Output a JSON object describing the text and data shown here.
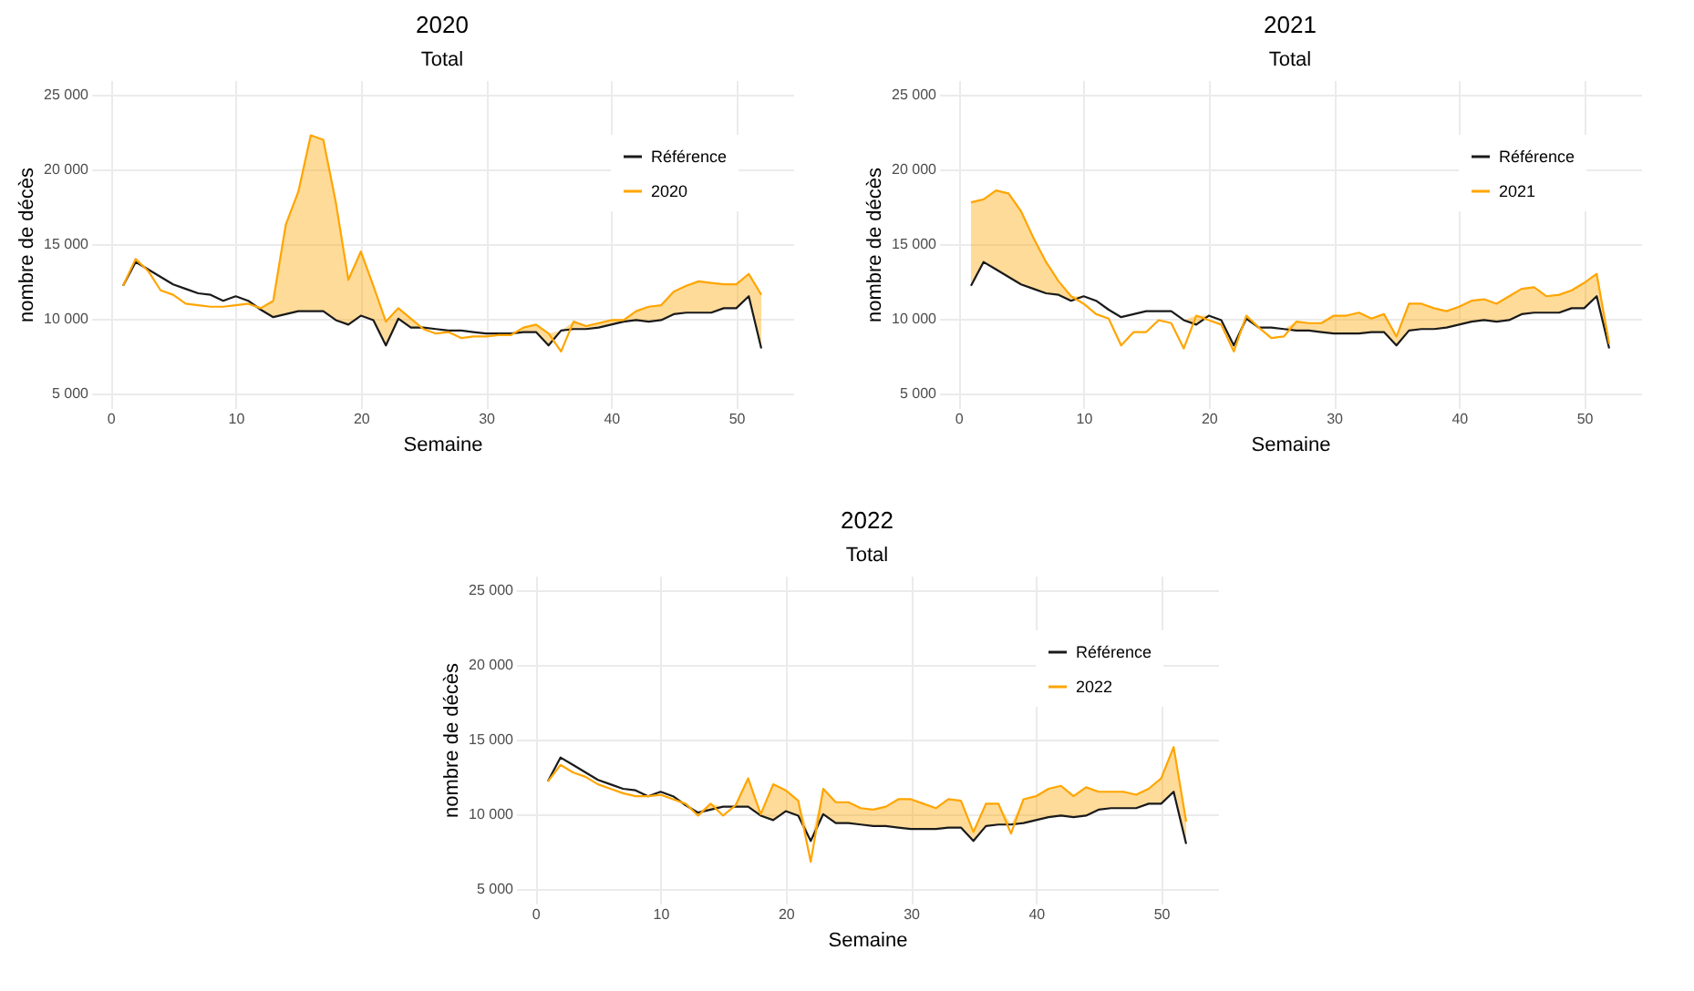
{
  "chart_data": [
    {
      "type": "line",
      "title": "2020",
      "subtitle": "Total",
      "xlabel": "Semaine",
      "ylabel": "nombre de décès",
      "x": [
        1,
        2,
        3,
        4,
        5,
        6,
        7,
        8,
        9,
        10,
        11,
        12,
        13,
        14,
        15,
        16,
        17,
        18,
        19,
        20,
        21,
        22,
        23,
        24,
        25,
        26,
        27,
        28,
        29,
        30,
        31,
        32,
        33,
        34,
        35,
        36,
        37,
        38,
        39,
        40,
        41,
        42,
        43,
        44,
        45,
        46,
        47,
        48,
        49,
        50,
        51,
        52
      ],
      "xlim": [
        -1.55,
        54.55
      ],
      "xticks": [
        0,
        10,
        20,
        30,
        40,
        50
      ],
      "ylim": [
        4000,
        26000
      ],
      "yticks": [
        {
          "value": 5000,
          "label": "5 000"
        },
        {
          "value": 10000,
          "label": "10 000"
        },
        {
          "value": 15000,
          "label": "15 000"
        },
        {
          "value": 20000,
          "label": "20 000"
        },
        {
          "value": 25000,
          "label": "25 000"
        }
      ],
      "grid": true,
      "legend": "top right",
      "series": [
        {
          "name": "Référence",
          "color": "#1a1a1a",
          "values": [
            12200,
            13800,
            13300,
            12800,
            12300,
            12000,
            11700,
            11600,
            11200,
            11500,
            11200,
            10600,
            10100,
            10300,
            10500,
            10500,
            10500,
            9900,
            9600,
            10200,
            9900,
            8200,
            10000,
            9400,
            9400,
            9300,
            9200,
            9200,
            9100,
            9000,
            9000,
            9000,
            9100,
            9100,
            8200,
            9200,
            9300,
            9300,
            9400,
            9600,
            9800,
            9900,
            9800,
            9900,
            10300,
            10400,
            10400,
            10400,
            10700,
            10700,
            11500,
            8000
          ]
        },
        {
          "name": "2020",
          "color": "#ffa500",
          "values": [
            12200,
            14000,
            13200,
            11900,
            11600,
            11000,
            10900,
            10800,
            10800,
            10900,
            11000,
            10700,
            11200,
            16300,
            18500,
            22300,
            22000,
            17800,
            12600,
            14500,
            12200,
            9800,
            10700,
            10000,
            9300,
            9000,
            9100,
            8700,
            8800,
            8800,
            8900,
            8900,
            9400,
            9600,
            9000,
            7800,
            9800,
            9500,
            9700,
            9900,
            9900,
            10500,
            10800,
            10900,
            11800,
            12200,
            12500,
            12400,
            12300,
            12300,
            13000,
            11600
          ],
          "lower": [
            12200,
            13800,
            13300,
            12800,
            12300,
            12000,
            11700,
            11600,
            11200,
            11500,
            11200,
            10600,
            10100,
            10300,
            10500,
            10500,
            10500,
            9900,
            9600,
            10200,
            9900,
            8200,
            10000,
            9400,
            9400,
            9300,
            9200,
            9200,
            9100,
            9000,
            9000,
            9000,
            9100,
            9100,
            8200,
            9200,
            9300,
            9300,
            9400,
            9600,
            9800,
            9900,
            9800,
            9900,
            10300,
            10400,
            10400,
            10400,
            10700,
            10700,
            11500,
            8000
          ],
          "upper": [
            12200,
            14000,
            13300,
            12800,
            12300,
            12000,
            11700,
            11600,
            11200,
            11500,
            11200,
            10700,
            11200,
            16300,
            18500,
            22300,
            22000,
            17800,
            12600,
            14500,
            12200,
            9800,
            10700,
            10000,
            9400,
            9300,
            9200,
            9200,
            9100,
            9000,
            9000,
            9000,
            9400,
            9600,
            9000,
            9200,
            9800,
            9500,
            9700,
            9900,
            9900,
            10500,
            10800,
            10900,
            11800,
            12200,
            12500,
            12400,
            12300,
            12300,
            13000,
            11600
          ]
        }
      ]
    },
    {
      "type": "line",
      "title": "2021",
      "subtitle": "Total",
      "xlabel": "Semaine",
      "ylabel": "nombre de décès",
      "x": [
        1,
        2,
        3,
        4,
        5,
        6,
        7,
        8,
        9,
        10,
        11,
        12,
        13,
        14,
        15,
        16,
        17,
        18,
        19,
        20,
        21,
        22,
        23,
        24,
        25,
        26,
        27,
        28,
        29,
        30,
        31,
        32,
        33,
        34,
        35,
        36,
        37,
        38,
        39,
        40,
        41,
        42,
        43,
        44,
        45,
        46,
        47,
        48,
        49,
        50,
        51,
        52
      ],
      "xlim": [
        -1.55,
        54.55
      ],
      "xticks": [
        0,
        10,
        20,
        30,
        40,
        50
      ],
      "ylim": [
        4000,
        26000
      ],
      "yticks": [
        {
          "value": 5000,
          "label": "5 000"
        },
        {
          "value": 10000,
          "label": "10 000"
        },
        {
          "value": 15000,
          "label": "15 000"
        },
        {
          "value": 20000,
          "label": "20 000"
        },
        {
          "value": 25000,
          "label": "25 000"
        }
      ],
      "grid": true,
      "legend": "top right",
      "series": [
        {
          "name": "Référence",
          "color": "#1a1a1a",
          "values": [
            12200,
            13800,
            13300,
            12800,
            12300,
            12000,
            11700,
            11600,
            11200,
            11500,
            11200,
            10600,
            10100,
            10300,
            10500,
            10500,
            10500,
            9900,
            9600,
            10200,
            9900,
            8200,
            10000,
            9400,
            9400,
            9300,
            9200,
            9200,
            9100,
            9000,
            9000,
            9000,
            9100,
            9100,
            8200,
            9200,
            9300,
            9300,
            9400,
            9600,
            9800,
            9900,
            9800,
            9900,
            10300,
            10400,
            10400,
            10400,
            10700,
            10700,
            11500,
            8000
          ]
        },
        {
          "name": "2021",
          "color": "#ffa500",
          "values": [
            17800,
            18000,
            18600,
            18400,
            17200,
            15400,
            13800,
            12500,
            11500,
            11000,
            10300,
            10000,
            8200,
            9100,
            9100,
            9900,
            9700,
            8000,
            10200,
            9900,
            9600,
            7800,
            10200,
            9400,
            8700,
            8800,
            9800,
            9700,
            9700,
            10200,
            10200,
            10400,
            10000,
            10300,
            8800,
            11000,
            11000,
            10700,
            10500,
            10800,
            11200,
            11300,
            11000,
            11500,
            12000,
            12100,
            11500,
            11600,
            11900,
            12400,
            13000,
            8300
          ],
          "lower": [
            12200,
            13800,
            13300,
            12800,
            12300,
            12000,
            11700,
            11600,
            11200,
            11500,
            11200,
            10600,
            10100,
            10300,
            10500,
            10500,
            10500,
            9900,
            9600,
            10200,
            9900,
            8200,
            10000,
            9400,
            9400,
            9300,
            9200,
            9200,
            9100,
            9000,
            9000,
            9000,
            9100,
            9100,
            8200,
            9200,
            9300,
            9300,
            9400,
            9600,
            9800,
            9900,
            9800,
            9900,
            10300,
            10400,
            10400,
            10400,
            10700,
            10700,
            11500,
            8000
          ],
          "upper": [
            17800,
            18000,
            18600,
            18400,
            17200,
            15400,
            13800,
            12500,
            11500,
            11500,
            11200,
            10600,
            10100,
            10300,
            10500,
            10500,
            10500,
            9900,
            10200,
            10200,
            9900,
            8200,
            10200,
            9400,
            9400,
            9300,
            9800,
            9700,
            9700,
            10200,
            10200,
            10400,
            10000,
            10300,
            8800,
            11000,
            11000,
            10700,
            10500,
            10800,
            11200,
            11300,
            11000,
            11500,
            12000,
            12100,
            11500,
            11600,
            11900,
            12400,
            13000,
            8300
          ]
        }
      ]
    },
    {
      "type": "line",
      "title": "2022",
      "subtitle": "Total",
      "xlabel": "Semaine",
      "ylabel": "nombre de décès",
      "x": [
        1,
        2,
        3,
        4,
        5,
        6,
        7,
        8,
        9,
        10,
        11,
        12,
        13,
        14,
        15,
        16,
        17,
        18,
        19,
        20,
        21,
        22,
        23,
        24,
        25,
        26,
        27,
        28,
        29,
        30,
        31,
        32,
        33,
        34,
        35,
        36,
        37,
        38,
        39,
        40,
        41,
        42,
        43,
        44,
        45,
        46,
        47,
        48,
        49,
        50,
        51,
        52
      ],
      "xlim": [
        -1.55,
        54.55
      ],
      "xticks": [
        0,
        10,
        20,
        30,
        40,
        50
      ],
      "ylim": [
        4000,
        26000
      ],
      "yticks": [
        {
          "value": 5000,
          "label": "5 000"
        },
        {
          "value": 10000,
          "label": "10 000"
        },
        {
          "value": 15000,
          "label": "15 000"
        },
        {
          "value": 20000,
          "label": "20 000"
        },
        {
          "value": 25000,
          "label": "25 000"
        }
      ],
      "grid": true,
      "legend": "top right",
      "series": [
        {
          "name": "Référence",
          "color": "#1a1a1a",
          "values": [
            12200,
            13800,
            13300,
            12800,
            12300,
            12000,
            11700,
            11600,
            11200,
            11500,
            11200,
            10600,
            10100,
            10300,
            10500,
            10500,
            10500,
            9900,
            9600,
            10200,
            9900,
            8200,
            10000,
            9400,
            9400,
            9300,
            9200,
            9200,
            9100,
            9000,
            9000,
            9000,
            9100,
            9100,
            8200,
            9200,
            9300,
            9300,
            9400,
            9600,
            9800,
            9900,
            9800,
            9900,
            10300,
            10400,
            10400,
            10400,
            10700,
            10700,
            11500,
            8000
          ]
        },
        {
          "name": "2022",
          "color": "#ffa500",
          "values": [
            12200,
            13300,
            12800,
            12500,
            12000,
            11700,
            11400,
            11200,
            11200,
            11300,
            11000,
            10700,
            9900,
            10700,
            9900,
            10600,
            12400,
            10000,
            12000,
            11600,
            10900,
            6800,
            11700,
            10800,
            10800,
            10400,
            10300,
            10500,
            11000,
            11000,
            10700,
            10400,
            11000,
            10900,
            8800,
            10700,
            10700,
            8700,
            11000,
            11200,
            11700,
            11900,
            11200,
            11800,
            11500,
            11500,
            11500,
            11300,
            11700,
            12400,
            14500,
            9500
          ],
          "lower": [
            12200,
            13800,
            13300,
            12800,
            12300,
            12000,
            11700,
            11600,
            11200,
            11500,
            11200,
            10600,
            10100,
            10300,
            10500,
            10500,
            10500,
            9900,
            9600,
            10200,
            9900,
            8200,
            10000,
            9400,
            9400,
            9300,
            9200,
            9200,
            9100,
            9000,
            9000,
            9000,
            9100,
            9100,
            8200,
            9200,
            9300,
            9300,
            9400,
            9600,
            9800,
            9900,
            9800,
            9900,
            10300,
            10400,
            10400,
            10400,
            10700,
            10700,
            11500,
            8000
          ],
          "upper": [
            12200,
            13800,
            13300,
            12800,
            12300,
            12000,
            11700,
            11600,
            11200,
            11500,
            11200,
            10700,
            10100,
            10700,
            10500,
            10600,
            12400,
            10000,
            12000,
            11600,
            10900,
            8200,
            11700,
            10800,
            10800,
            10400,
            10300,
            10500,
            11000,
            11000,
            10700,
            10400,
            11000,
            10900,
            8800,
            10700,
            10700,
            9300,
            11000,
            11200,
            11700,
            11900,
            11200,
            11800,
            11500,
            11500,
            11500,
            11300,
            11700,
            12400,
            14500,
            9500
          ]
        }
      ]
    }
  ]
}
